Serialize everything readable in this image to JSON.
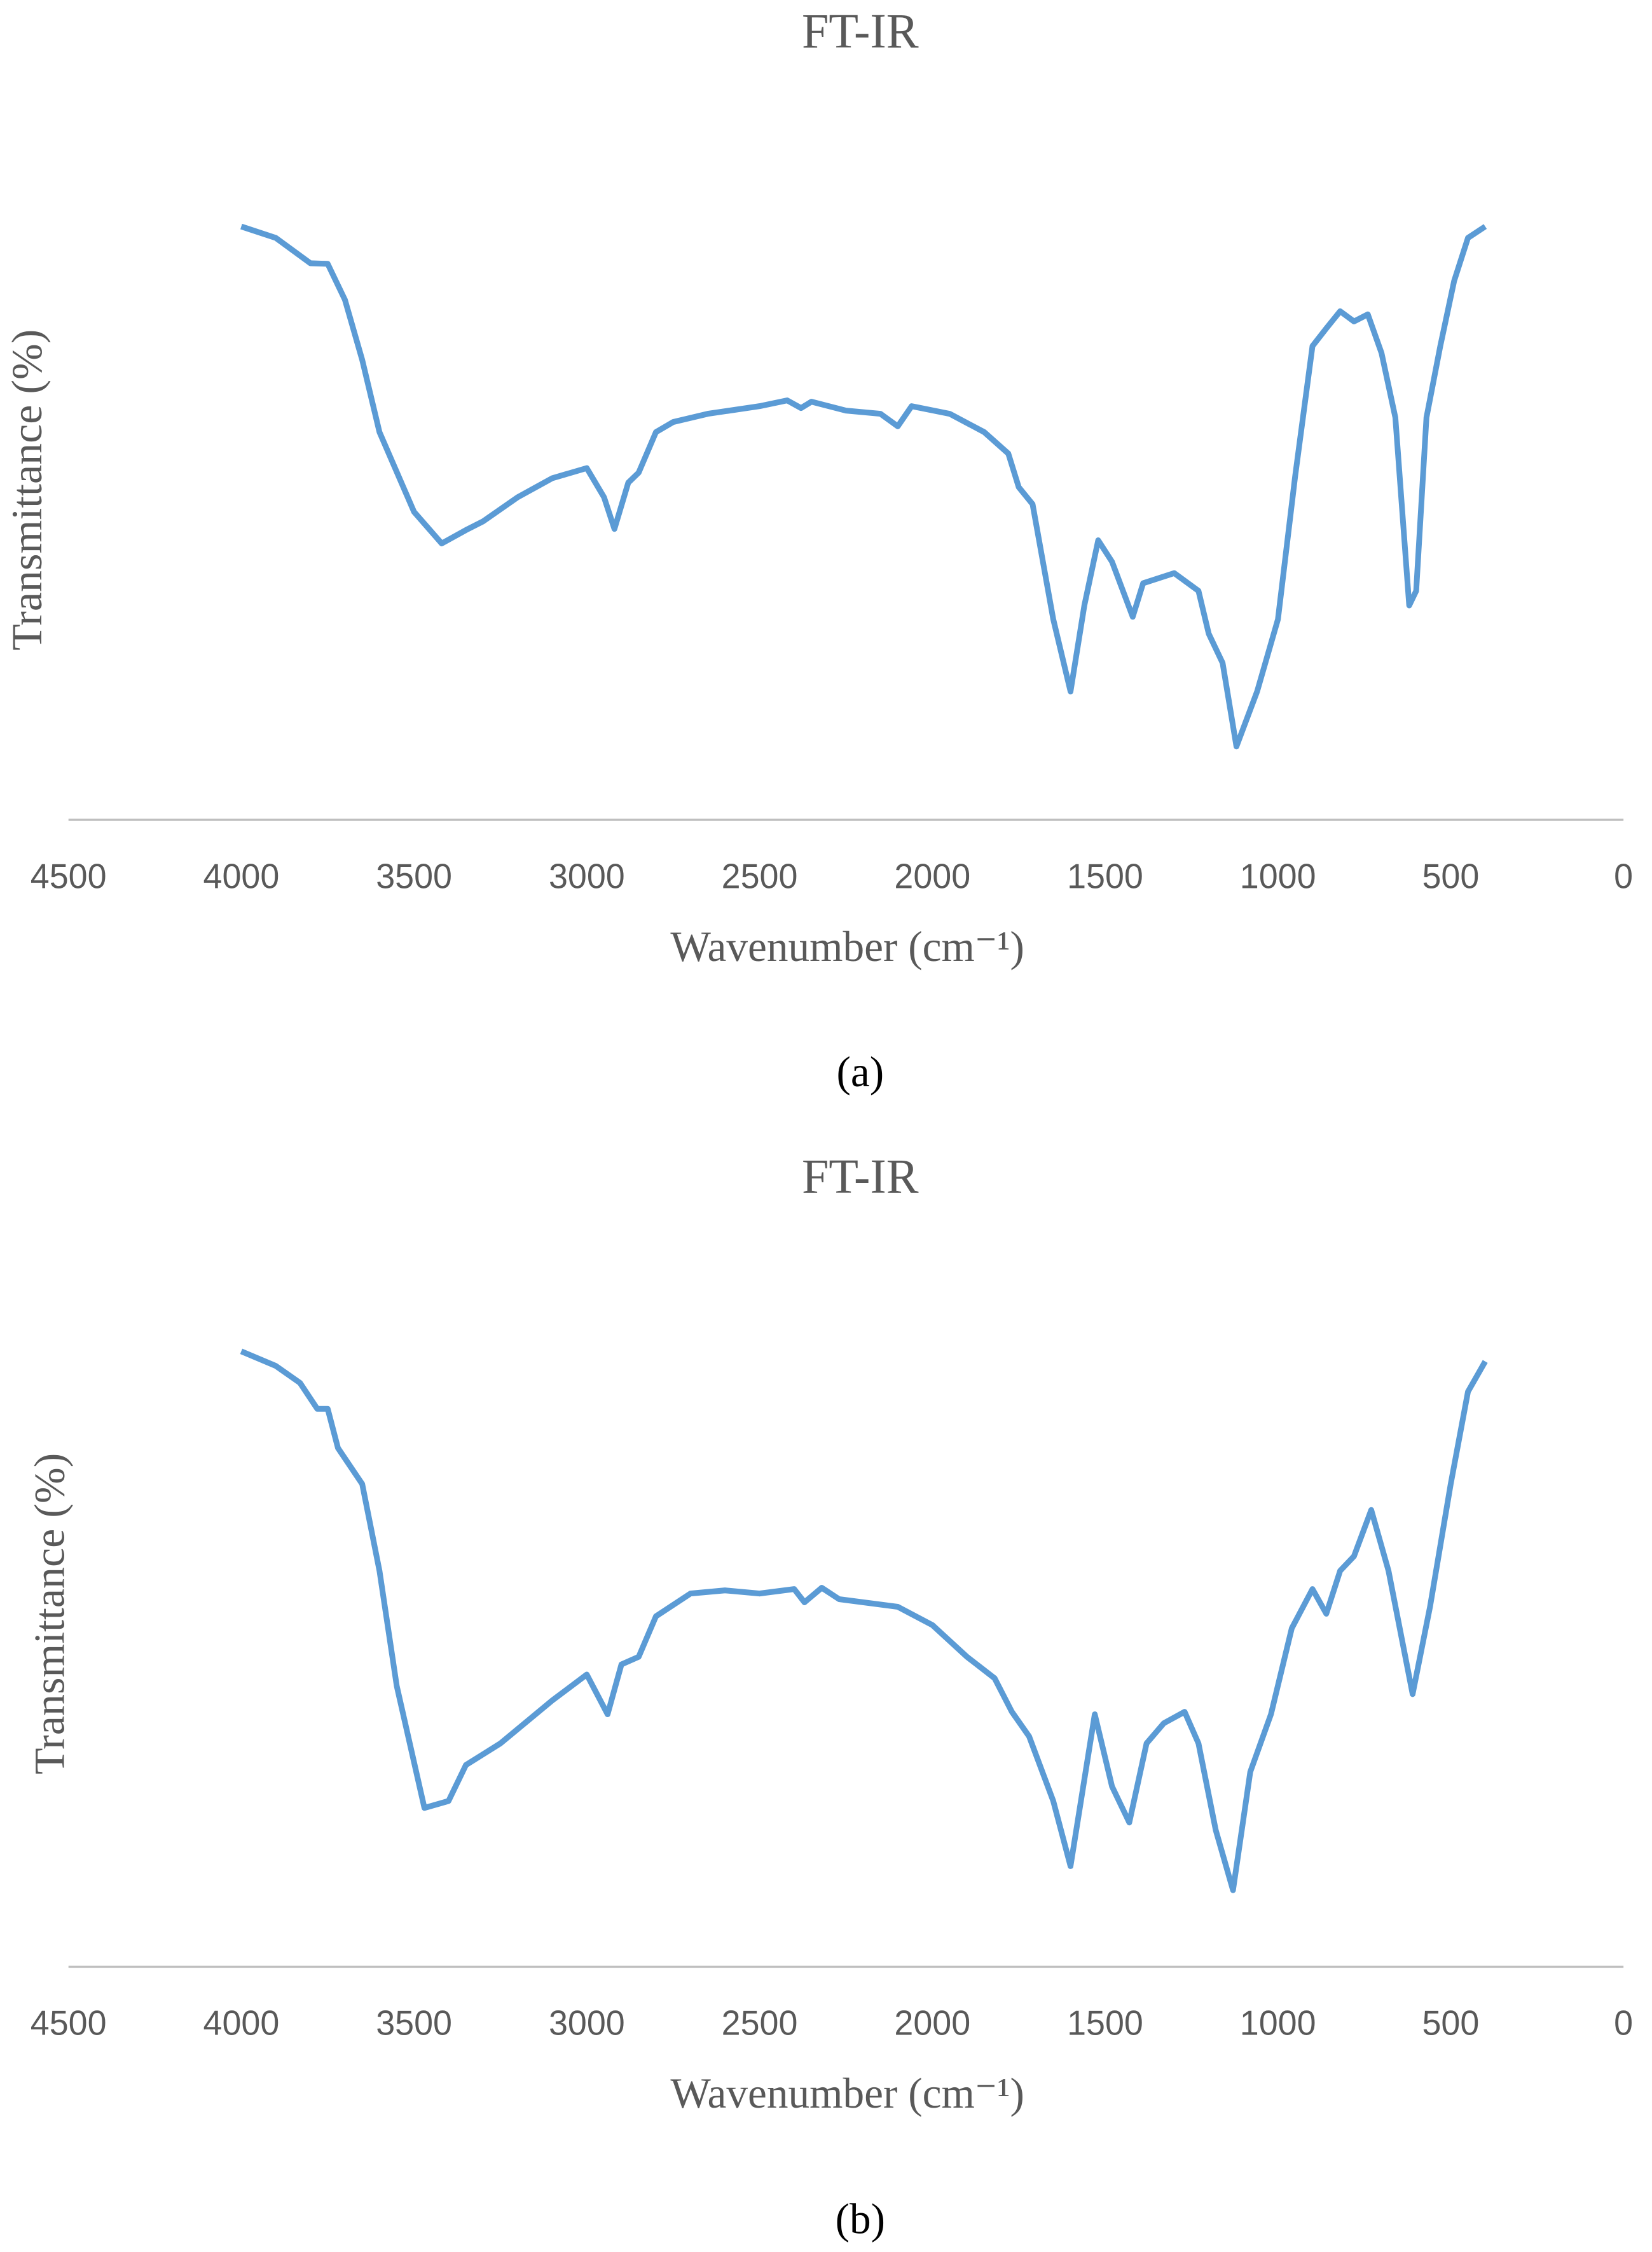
{
  "chart_data": [
    {
      "type": "line",
      "title": "FT-IR",
      "x_label": "Wavenumber (cm⁻¹)",
      "y_label": "Transmittance (%)",
      "caption": "(a)",
      "color": "#5b9bd5",
      "xlim": [
        4500,
        0
      ],
      "ylim": [
        0,
        100
      ],
      "xticks": [
        4500,
        4000,
        3500,
        3000,
        2500,
        2000,
        1500,
        1000,
        500,
        0
      ],
      "x": [
        4000,
        3900,
        3800,
        3750,
        3700,
        3650,
        3600,
        3500,
        3420,
        3350,
        3300,
        3200,
        3100,
        3000,
        2950,
        2920,
        2880,
        2850,
        2800,
        2750,
        2650,
        2500,
        2420,
        2380,
        2350,
        2250,
        2150,
        2100,
        2060,
        1950,
        1850,
        1780,
        1750,
        1710,
        1650,
        1600,
        1560,
        1520,
        1480,
        1420,
        1390,
        1300,
        1230,
        1200,
        1160,
        1120,
        1060,
        1000,
        950,
        900,
        860,
        820,
        780,
        740,
        700,
        660,
        620,
        600,
        570,
        530,
        490,
        450,
        400
      ],
      "values": [
        93.8,
        92,
        88,
        87.9,
        82.2,
        72.7,
        61.3,
        48.7,
        43.7,
        45.8,
        47.2,
        51,
        54,
        55.6,
        51,
        46,
        53.3,
        54.9,
        61.3,
        62.9,
        64.2,
        65.4,
        66.3,
        65.1,
        66.1,
        64.7,
        64.2,
        62.2,
        65.4,
        64.2,
        61.3,
        57.9,
        52.6,
        49.9,
        31.7,
        20.3,
        33.9,
        44.2,
        40.8,
        32.1,
        37.4,
        39,
        36.2,
        29.4,
        24.8,
        11.6,
        20.3,
        31.7,
        54.4,
        74.9,
        77.7,
        80.4,
        78.8,
        79.9,
        73.8,
        63.6,
        33.9,
        36.2,
        63.6,
        74.9,
        85.2,
        92,
        93.8
      ]
    },
    {
      "type": "line",
      "title": "FT-IR",
      "x_label": "Wavenumber (cm⁻¹)",
      "y_label": "Transmittance (%)",
      "caption": "(b)",
      "color": "#5b9bd5",
      "xlim": [
        4500,
        0
      ],
      "ylim": [
        0,
        100
      ],
      "xticks": [
        4500,
        4000,
        3500,
        3000,
        2500,
        2000,
        1500,
        1000,
        500,
        0
      ],
      "x": [
        4000,
        3900,
        3830,
        3780,
        3750,
        3720,
        3650,
        3600,
        3550,
        3470,
        3400,
        3350,
        3250,
        3100,
        3000,
        2940,
        2900,
        2850,
        2800,
        2700,
        2600,
        2500,
        2400,
        2370,
        2320,
        2270,
        2100,
        2000,
        1900,
        1820,
        1770,
        1720,
        1650,
        1600,
        1530,
        1480,
        1430,
        1380,
        1330,
        1270,
        1230,
        1180,
        1130,
        1080,
        1020,
        960,
        900,
        860,
        820,
        780,
        730,
        680,
        610,
        560,
        500,
        450,
        400
      ],
      "values": [
        97.3,
        95,
        92.3,
        88.2,
        88.2,
        82,
        76.3,
        62.6,
        44.4,
        25.1,
        26.2,
        31.9,
        35.3,
        42.1,
        46.2,
        39.9,
        47.8,
        49,
        55.4,
        59,
        59.5,
        59,
        59.7,
        57.6,
        59.9,
        58.1,
        56.9,
        54,
        49,
        45.6,
        40.3,
        36.4,
        26.2,
        15.9,
        39.9,
        28.5,
        22.8,
        35.3,
        38.5,
        40.3,
        35.3,
        21.6,
        12.1,
        30.8,
        39.9,
        53.5,
        59.7,
        55.8,
        62.6,
        64.9,
        72.2,
        62.6,
        43.1,
        56.9,
        76.3,
        90.9,
        95.7
      ]
    }
  ]
}
